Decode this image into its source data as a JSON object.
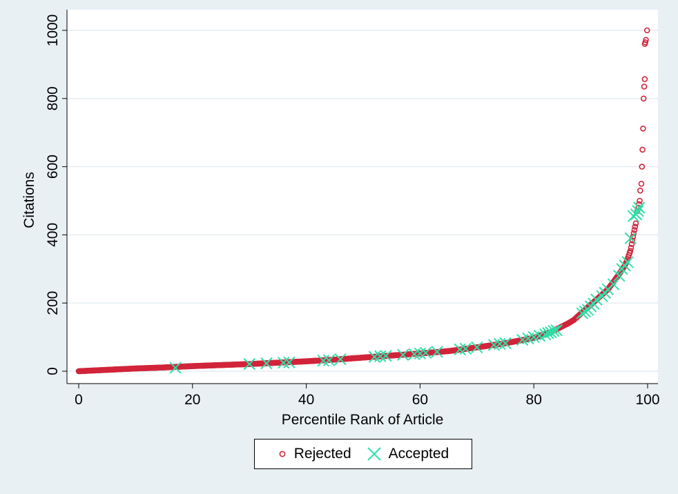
{
  "chart_data": {
    "type": "scatter",
    "xlabel": "Percentile Rank of Article",
    "ylabel": "Citations",
    "xlim": [
      0,
      100
    ],
    "ylim": [
      0,
      1000
    ],
    "xticks": [
      0,
      20,
      40,
      60,
      80,
      100
    ],
    "yticks": [
      0,
      200,
      400,
      600,
      800,
      1000
    ],
    "grid": "horizontal",
    "legend_position": "bottom",
    "series": [
      {
        "name": "Rejected",
        "marker": "hollow-circle",
        "color": "#d1243a",
        "curve": [
          [
            0,
            0
          ],
          [
            5,
            4
          ],
          [
            10,
            8
          ],
          [
            15,
            11
          ],
          [
            20,
            15
          ],
          [
            25,
            18
          ],
          [
            30,
            21
          ],
          [
            35,
            25
          ],
          [
            40,
            29
          ],
          [
            45,
            34
          ],
          [
            50,
            40
          ],
          [
            55,
            46
          ],
          [
            60,
            52
          ],
          [
            65,
            59
          ],
          [
            70,
            70
          ],
          [
            75,
            82
          ],
          [
            80,
            98
          ],
          [
            83,
            115
          ],
          [
            86,
            140
          ],
          [
            87,
            150
          ],
          [
            88,
            165
          ],
          [
            89,
            180
          ],
          [
            90,
            195
          ],
          [
            91,
            210
          ],
          [
            92,
            225
          ],
          [
            93,
            240
          ],
          [
            94,
            262
          ],
          [
            95,
            285
          ],
          [
            96,
            310
          ],
          [
            96.5,
            330
          ],
          [
            97,
            355
          ],
          [
            97.5,
            400
          ],
          [
            98,
            440
          ]
        ],
        "outliers": [
          [
            98.2,
            470
          ],
          [
            98.4,
            480
          ],
          [
            98.5,
            490
          ],
          [
            98.6,
            500
          ],
          [
            98.7,
            530
          ],
          [
            98.9,
            550
          ],
          [
            99.0,
            600
          ],
          [
            99.1,
            650
          ],
          [
            99.2,
            712
          ],
          [
            99.3,
            800
          ],
          [
            99.4,
            835
          ],
          [
            99.5,
            857
          ],
          [
            99.5,
            960
          ],
          [
            99.6,
            965
          ],
          [
            99.7,
            972
          ],
          [
            99.9,
            1000
          ]
        ]
      },
      {
        "name": "Accepted",
        "marker": "x",
        "color": "#2ee0a8",
        "points": [
          [
            17,
            10
          ],
          [
            30,
            21
          ],
          [
            33,
            23
          ],
          [
            36,
            25
          ],
          [
            37,
            26
          ],
          [
            43,
            31
          ],
          [
            44,
            32
          ],
          [
            46,
            35
          ],
          [
            52,
            42
          ],
          [
            53,
            44
          ],
          [
            54,
            45
          ],
          [
            57,
            48
          ],
          [
            59,
            50
          ],
          [
            60,
            52
          ],
          [
            61,
            54
          ],
          [
            63,
            57
          ],
          [
            67,
            64
          ],
          [
            68,
            66
          ],
          [
            70,
            70
          ],
          [
            73,
            77
          ],
          [
            74,
            80
          ],
          [
            75,
            82
          ],
          [
            78,
            92
          ],
          [
            79,
            96
          ],
          [
            80,
            100
          ],
          [
            81,
            104
          ],
          [
            82,
            108
          ],
          [
            82.5,
            112
          ],
          [
            83,
            114
          ],
          [
            83.5,
            118
          ],
          [
            84,
            120
          ],
          [
            88.5,
            170
          ],
          [
            89,
            175
          ],
          [
            89.5,
            180
          ],
          [
            90,
            190
          ],
          [
            90.5,
            198
          ],
          [
            91,
            210
          ],
          [
            92,
            220
          ],
          [
            92.5,
            230
          ],
          [
            93,
            240
          ],
          [
            94,
            255
          ],
          [
            95,
            280
          ],
          [
            95.5,
            300
          ],
          [
            96,
            310
          ],
          [
            96.5,
            320
          ],
          [
            97,
            390
          ],
          [
            97.5,
            455
          ],
          [
            98,
            460
          ],
          [
            98.3,
            470
          ],
          [
            98.5,
            480
          ]
        ]
      }
    ]
  }
}
